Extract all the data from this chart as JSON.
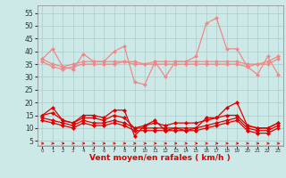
{
  "x": [
    0,
    1,
    2,
    3,
    4,
    5,
    6,
    7,
    8,
    9,
    10,
    11,
    12,
    13,
    14,
    15,
    16,
    17,
    18,
    19,
    20,
    21,
    22,
    23
  ],
  "rafales": [
    37,
    41,
    34,
    33,
    39,
    36,
    36,
    40,
    42,
    28,
    27,
    36,
    30,
    36,
    36,
    38,
    51,
    53,
    41,
    41,
    34,
    31,
    38,
    31
  ],
  "moy1": [
    37,
    35,
    34,
    35,
    36,
    36,
    36,
    36,
    36,
    36,
    35,
    36,
    36,
    36,
    36,
    36,
    36,
    36,
    36,
    36,
    35,
    35,
    36,
    38
  ],
  "moy2": [
    36,
    34,
    33,
    34,
    35,
    35,
    35,
    35,
    36,
    35,
    35,
    35,
    35,
    35,
    35,
    35,
    35,
    35,
    35,
    35,
    34,
    35,
    35,
    37
  ],
  "vent_moy": [
    15,
    18,
    13,
    12,
    15,
    15,
    14,
    17,
    17,
    7,
    11,
    13,
    9,
    10,
    9,
    10,
    14,
    14,
    18,
    20,
    11,
    10,
    10,
    12
  ],
  "vent2": [
    15,
    16,
    13,
    12,
    14,
    14,
    13,
    15,
    14,
    10,
    11,
    12,
    11,
    12,
    12,
    12,
    13,
    14,
    15,
    15,
    11,
    10,
    10,
    12
  ],
  "vent3": [
    14,
    13,
    12,
    11,
    13,
    12,
    12,
    13,
    12,
    10,
    10,
    10,
    10,
    10,
    10,
    10,
    11,
    12,
    13,
    14,
    10,
    9,
    9,
    11
  ],
  "vent4": [
    13,
    12,
    11,
    10,
    12,
    11,
    11,
    12,
    11,
    9,
    9,
    9,
    9,
    9,
    9,
    9,
    10,
    11,
    12,
    13,
    9,
    8,
    8,
    10
  ],
  "xlabel": "Vent moyen/en rafales ( km/h )",
  "ylim": [
    3,
    58
  ],
  "yticks": [
    5,
    10,
    15,
    20,
    25,
    30,
    35,
    40,
    45,
    50,
    55
  ],
  "bg_color": "#cce9e8",
  "grid_color": "#aacccc",
  "color_light": "#f08888",
  "color_dark": "#dd0000"
}
